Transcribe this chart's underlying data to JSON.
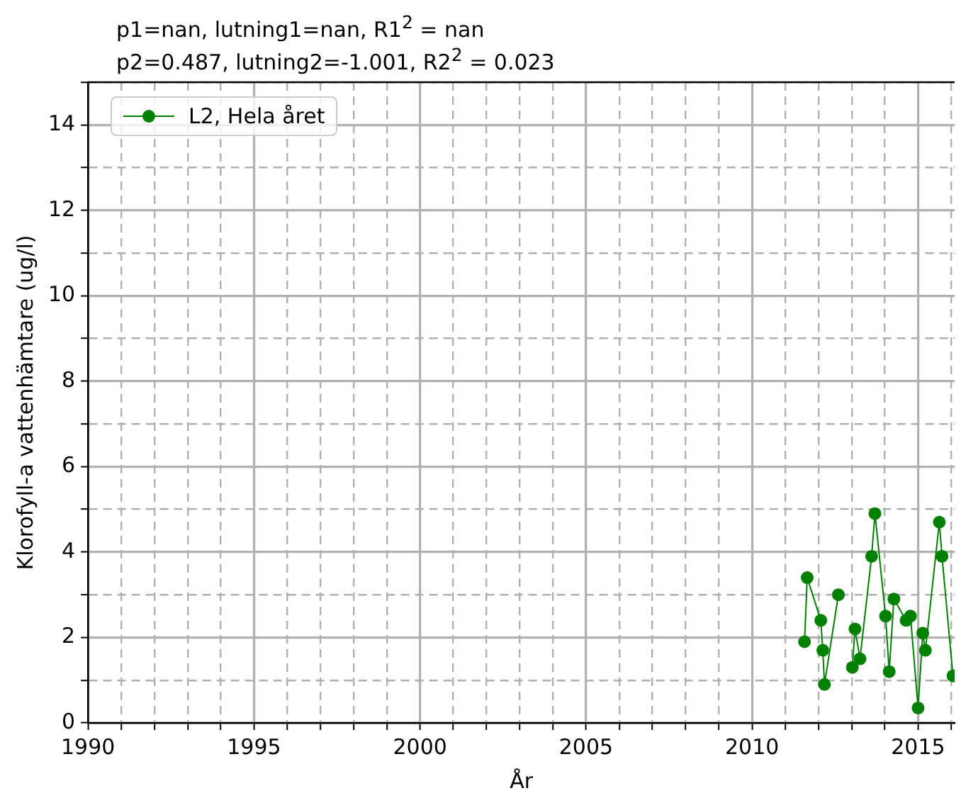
{
  "chart_data": {
    "type": "line",
    "title": "p1=nan, lutning1=nan, R1$^{2}$ = nan",
    "subtitle": "p2=0.487, lutning2=-1.001, R2$^{2}$ = 0.023",
    "xlabel": "År",
    "ylabel": "Klorofyll-a vattenhämtare (ug/l)",
    "series": [
      {
        "name": "L2, Hela året",
        "color": "#008000",
        "x": [
          2011.58,
          2011.66,
          2012.07,
          2012.13,
          2012.18,
          2012.6,
          2012.78,
          2013.02,
          2013.1,
          2013.25,
          2013.6,
          2013.7,
          2014.02,
          2014.13,
          2014.27,
          2014.64,
          2014.77,
          2015.0,
          2015.14,
          2015.22,
          2015.64,
          2015.72,
          2016.05
        ],
        "values": [
          1.9,
          3.4,
          2.4,
          1.7,
          0.9,
          3.0,
          null,
          1.3,
          2.2,
          1.5,
          3.9,
          4.9,
          2.5,
          1.2,
          2.9,
          2.4,
          2.5,
          0.35,
          2.1,
          1.7,
          4.7,
          3.9,
          1.1
        ]
      }
    ],
    "xlim": [
      1990,
      2016.1
    ],
    "xticks": [
      1990,
      {
        "value": 1991,
        "label": null
      },
      {
        "value": 1992,
        "label": null
      },
      {
        "value": 1993,
        "label": null
      },
      {
        "value": 1994,
        "label": null
      },
      1995,
      {
        "value": 1996,
        "label": null
      },
      {
        "value": 1997,
        "label": null
      },
      {
        "value": 1998,
        "label": null
      },
      {
        "value": 1999,
        "label": null
      },
      2000,
      {
        "value": 2001,
        "label": null
      },
      {
        "value": 2002,
        "label": null
      },
      {
        "value": 2003,
        "label": null
      },
      {
        "value": 2004,
        "label": null
      },
      2005,
      {
        "value": 2006,
        "label": null
      },
      {
        "value": 2007,
        "label": null
      },
      {
        "value": 2008,
        "label": null
      },
      {
        "value": 2009,
        "label": null
      },
      2010,
      {
        "value": 2011,
        "label": null
      },
      {
        "value": 2012,
        "label": null
      },
      {
        "value": 2013,
        "label": null
      },
      {
        "value": 2014,
        "label": null
      },
      2015,
      {
        "value": 2016,
        "label": null
      }
    ],
    "ylim": [
      0,
      15
    ],
    "yticks": [
      0,
      {
        "value": 1,
        "label": null
      },
      2,
      {
        "value": 3,
        "label": null
      },
      4,
      {
        "value": 5,
        "label": null
      },
      6,
      {
        "value": 7,
        "label": null
      },
      8,
      {
        "value": 9,
        "label": null
      },
      10,
      {
        "value": 11,
        "label": null
      },
      12,
      {
        "value": 13,
        "label": null
      },
      14,
      {
        "value": 15,
        "label": null
      }
    ],
    "grid": true,
    "legend": "top left",
    "marker": "circle",
    "line_style": "solid"
  }
}
